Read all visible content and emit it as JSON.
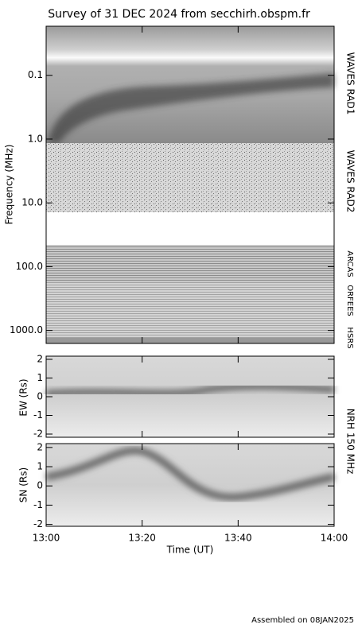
{
  "chart_data": [
    {
      "type": "spectrogram",
      "title": "Survey of 31 DEC 2024 from secchirh.obspm.fr",
      "ylabel": "Frequency (MHz)",
      "log_scale": true,
      "ylim": [
        1600,
        0.017
      ],
      "yticks": [
        {
          "value": 0.1,
          "label": "0.1"
        },
        {
          "value": 1,
          "label": "1.0"
        },
        {
          "value": 10,
          "label": "10.0"
        },
        {
          "value": 100,
          "label": "100.0"
        },
        {
          "value": 1000,
          "label": "1000.0"
        }
      ],
      "panel_labels": [
        "WAVES RAD1",
        "WAVES RAD2",
        "ARCAS",
        "ORFEES",
        "HSRS"
      ]
    },
    {
      "type": "spectrogram",
      "ylabel": "EW (Rs)",
      "ylim": [
        -2.17,
        2.17
      ],
      "yticks": [
        -2,
        -1,
        0,
        1,
        2
      ],
      "panel_label": "NRH 150 MHz"
    },
    {
      "type": "spectrogram",
      "ylabel": "SN (Rs)",
      "ylim": [
        -2.1,
        2.2
      ],
      "yticks": [
        -2,
        -1,
        0,
        1,
        2
      ],
      "xlabel": "Time (UT)",
      "xlim": [
        0,
        60
      ],
      "xticks": [
        {
          "value": 0,
          "label": "13:00"
        },
        {
          "value": 20,
          "label": "13:20"
        },
        {
          "value": 40,
          "label": "13:40"
        },
        {
          "value": 60,
          "label": "14:00"
        }
      ]
    }
  ],
  "footer": "Assembled on 08JAN2025"
}
